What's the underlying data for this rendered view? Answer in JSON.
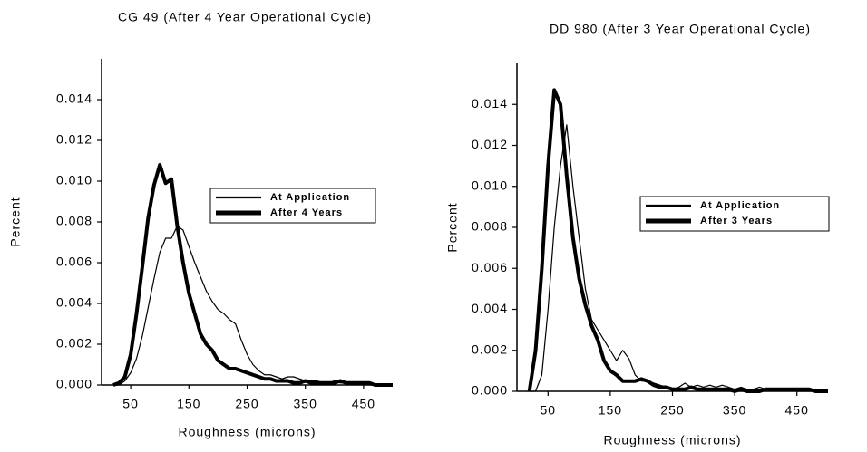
{
  "chart_data": [
    {
      "type": "line",
      "title": "CG 49 (After 4 Year Operational Cycle)",
      "x_label": "Roughness (microns)",
      "y_label": "Percent",
      "x": [
        20,
        30,
        40,
        50,
        60,
        70,
        80,
        90,
        100,
        110,
        120,
        130,
        140,
        150,
        160,
        170,
        180,
        190,
        200,
        210,
        220,
        230,
        240,
        250,
        260,
        270,
        280,
        290,
        300,
        310,
        320,
        330,
        340,
        350,
        360,
        370,
        380,
        390,
        400,
        410,
        420,
        430,
        440,
        450,
        460,
        470,
        480,
        490,
        500
      ],
      "series": [
        {
          "name": "At Application",
          "color": "#000000",
          "width": 1.2,
          "values": [
            0,
            0,
            0.0002,
            0.0006,
            0.0013,
            0.0024,
            0.0038,
            0.0052,
            0.0065,
            0.0072,
            0.0072,
            0.0078,
            0.0076,
            0.0068,
            0.006,
            0.0053,
            0.0046,
            0.0041,
            0.0037,
            0.0035,
            0.0032,
            0.003,
            0.0022,
            0.0015,
            0.001,
            0.0007,
            0.0005,
            0.0005,
            0.0004,
            0.0003,
            0.0004,
            0.0004,
            0.0003,
            0.0002,
            0.0002,
            0.0002,
            0.0001,
            0.0001,
            0.0002,
            0.0001,
            0.0001,
            0.0001,
            0.0001,
            0.0001,
            0,
            0,
            0,
            0,
            0
          ]
        },
        {
          "name": "After 4 Years",
          "color": "#000000",
          "width": 4,
          "values": [
            0,
            0.0001,
            0.0004,
            0.0015,
            0.0035,
            0.0058,
            0.0082,
            0.0098,
            0.0108,
            0.0099,
            0.0101,
            0.0078,
            0.006,
            0.0045,
            0.0035,
            0.0025,
            0.002,
            0.0017,
            0.0012,
            0.001,
            0.0008,
            0.0008,
            0.0007,
            0.0006,
            0.0005,
            0.0004,
            0.0003,
            0.0003,
            0.0002,
            0.0002,
            0.0002,
            0.0001,
            0.0001,
            0.0002,
            0.0001,
            0.0001,
            0.0001,
            0.0001,
            0.0001,
            0.0002,
            0.0001,
            0.0001,
            0.0001,
            0.0001,
            0.0001,
            0,
            0,
            0,
            0
          ]
        }
      ],
      "xlim": [
        0,
        500
      ],
      "xticks": [
        50,
        150,
        250,
        350,
        450
      ],
      "ylim": [
        0,
        0.016
      ],
      "yticks": [
        {
          "value": 0,
          "label": "0.000"
        },
        {
          "value": 0.002,
          "label": "0.002"
        },
        {
          "value": 0.004,
          "label": "0.004"
        },
        {
          "value": 0.006,
          "label": "0.006"
        },
        {
          "value": 0.008,
          "label": "0.008"
        },
        {
          "value": 0.01,
          "label": "0.010"
        },
        {
          "value": 0.012,
          "label": "0.012"
        },
        {
          "value": 0.014,
          "label": "0.014"
        }
      ]
    },
    {
      "type": "line",
      "title": "DD 980 (After 3 Year Operational Cycle)",
      "x_label": "Roughness (microns)",
      "y_label": "Percent",
      "x": [
        20,
        30,
        40,
        50,
        60,
        70,
        80,
        90,
        100,
        110,
        120,
        130,
        140,
        150,
        160,
        170,
        180,
        190,
        200,
        210,
        220,
        230,
        240,
        250,
        260,
        270,
        280,
        290,
        300,
        310,
        320,
        330,
        340,
        350,
        360,
        370,
        380,
        390,
        400,
        410,
        420,
        430,
        440,
        450,
        460,
        470,
        480,
        490,
        500
      ],
      "series": [
        {
          "name": "At Application",
          "color": "#000000",
          "width": 1.2,
          "values": [
            0,
            0,
            0.0008,
            0.004,
            0.008,
            0.011,
            0.013,
            0.01,
            0.0075,
            0.005,
            0.0035,
            0.003,
            0.0025,
            0.002,
            0.0015,
            0.002,
            0.0016,
            0.0008,
            0.0005,
            0.0005,
            0.0004,
            0.0003,
            0.0002,
            0.0001,
            0.0002,
            0.0004,
            0.0002,
            0.0003,
            0.0002,
            0.0003,
            0.0002,
            0.0003,
            0.0002,
            0.0001,
            0.0002,
            0.0001,
            0.0001,
            0.0002,
            0.0001,
            0.0001,
            0.0001,
            0,
            0.0001,
            0,
            0,
            0,
            0,
            0,
            0
          ]
        },
        {
          "name": "After 3 Years",
          "color": "#000000",
          "width": 4,
          "values": [
            0,
            0.002,
            0.006,
            0.011,
            0.0147,
            0.014,
            0.0105,
            0.0075,
            0.0055,
            0.0042,
            0.0032,
            0.0025,
            0.0015,
            0.001,
            0.0008,
            0.0005,
            0.0005,
            0.0005,
            0.0006,
            0.0005,
            0.0003,
            0.0002,
            0.0002,
            0.0001,
            0.0001,
            0.0001,
            0.0002,
            0.0001,
            0.0001,
            0.0001,
            0.0001,
            0.0001,
            0.0001,
            0,
            0.0001,
            0,
            0,
            0,
            0.0001,
            0.0001,
            0.0001,
            0.0001,
            0.0001,
            0.0001,
            0.0001,
            0.0001,
            0,
            0,
            0
          ]
        }
      ],
      "xlim": [
        0,
        500
      ],
      "xticks": [
        50,
        150,
        250,
        350,
        450
      ],
      "ylim": [
        0,
        0.016
      ],
      "yticks": [
        {
          "value": 0,
          "label": "0.000"
        },
        {
          "value": 0.002,
          "label": "0.002"
        },
        {
          "value": 0.004,
          "label": "0.004"
        },
        {
          "value": 0.006,
          "label": "0.006"
        },
        {
          "value": 0.008,
          "label": "0.008"
        },
        {
          "value": 0.01,
          "label": "0.010"
        },
        {
          "value": 0.012,
          "label": "0.012"
        },
        {
          "value": 0.014,
          "label": "0.014"
        }
      ]
    }
  ]
}
